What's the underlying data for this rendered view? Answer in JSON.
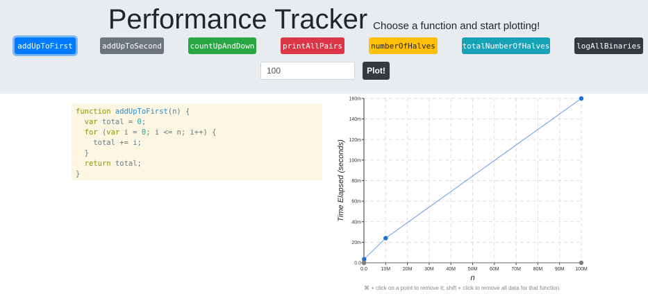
{
  "header": {
    "title": "Performance Tracker",
    "subtitle": "Choose a function and start plotting!"
  },
  "functions": [
    {
      "label": "addUpToFirst",
      "color": "#007bff",
      "active": true
    },
    {
      "label": "addUpToSecond",
      "color": "#6c757d",
      "active": false
    },
    {
      "label": "countUpAndDown",
      "color": "#28a745",
      "active": false
    },
    {
      "label": "printAllPairs",
      "color": "#dc3545",
      "active": false
    },
    {
      "label": "numberOfHalves",
      "color": "#ffc107",
      "active": false
    },
    {
      "label": "totalNumberOfHalves",
      "color": "#17a2b8",
      "active": false
    },
    {
      "label": "logAllBinaries",
      "color": "#343a40",
      "active": false
    }
  ],
  "controls": {
    "n_value": "100",
    "plot_label": "Plot!"
  },
  "code": {
    "lines": [
      "function addUpToFirst(n) {",
      "  var total = 0;",
      "  for (var i = 0; i <= n; i++) {",
      "    total += i;",
      "  }",
      "  return total;",
      "}"
    ]
  },
  "chart_data": {
    "type": "scatter",
    "xlabel": "n",
    "ylabel": "Time Elapsed (seconds)",
    "x_ticks": [
      "0.0",
      "10M",
      "20M",
      "30M",
      "40M",
      "50M",
      "60M",
      "70M",
      "80M",
      "90M",
      "100M"
    ],
    "y_ticks": [
      "0.0",
      "20m",
      "40m",
      "60m",
      "80m",
      "100m",
      "120m",
      "140m",
      "160m"
    ],
    "xlim": [
      0,
      100000000
    ],
    "ylim": [
      0,
      0.16
    ],
    "grid": true,
    "series": [
      {
        "color": "#1e6fd9",
        "points": [
          [
            0,
            0.0
          ],
          [
            100,
            0.0
          ],
          [
            100000,
            0.0035
          ],
          [
            10000000,
            0.024
          ],
          [
            100000000,
            0.16
          ]
        ]
      },
      {
        "color": "#808080",
        "points": [
          [
            0,
            0.0
          ],
          [
            100,
            0.0
          ],
          [
            100000000,
            0.0
          ]
        ]
      }
    ]
  },
  "footer": {
    "hint": "⌘ + click on a point to remove it; shift + click to remove all data for that function."
  }
}
